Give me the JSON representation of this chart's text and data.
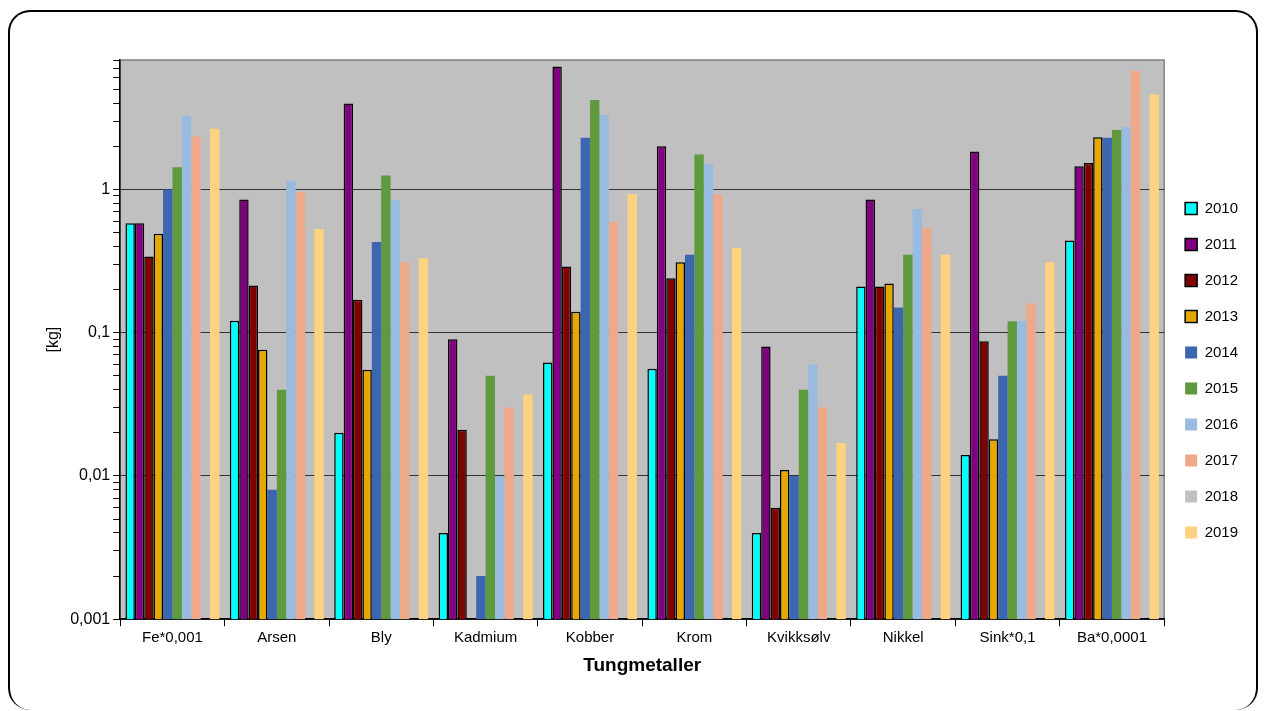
{
  "chart_data": {
    "type": "bar",
    "xlabel": "Tungmetaller",
    "ylabel": "[kg]",
    "log": true,
    "grid": "y",
    "legend": "right",
    "categories": [
      "Fe*0,001",
      "Arsen",
      "Bly",
      "Kadmium",
      "Kobber",
      "Krom",
      "Kvikksølv",
      "Nikkel",
      "Sink*0,1",
      "Ba*0,0001"
    ],
    "ylim": [
      0.001,
      8
    ],
    "yticks": [
      {
        "value": 0.001,
        "label": "0,001"
      },
      {
        "value": 0.002,
        "label": null
      },
      {
        "value": 0.003,
        "label": null
      },
      {
        "value": 0.004,
        "label": null
      },
      {
        "value": 0.005,
        "label": null
      },
      {
        "value": 0.006,
        "label": null
      },
      {
        "value": 0.007,
        "label": null
      },
      {
        "value": 0.008,
        "label": null
      },
      {
        "value": 0.009,
        "label": null
      },
      {
        "value": 0.01,
        "label": "0,01"
      },
      {
        "value": 0.02,
        "label": null
      },
      {
        "value": 0.03,
        "label": null
      },
      {
        "value": 0.04,
        "label": null
      },
      {
        "value": 0.05,
        "label": null
      },
      {
        "value": 0.06,
        "label": null
      },
      {
        "value": 0.07,
        "label": null
      },
      {
        "value": 0.08,
        "label": null
      },
      {
        "value": 0.09,
        "label": null
      },
      {
        "value": 0.1,
        "label": "0,1"
      },
      {
        "value": 0.2,
        "label": null
      },
      {
        "value": 0.3,
        "label": null
      },
      {
        "value": 0.4,
        "label": null
      },
      {
        "value": 0.5,
        "label": null
      },
      {
        "value": 0.6,
        "label": null
      },
      {
        "value": 0.7,
        "label": null
      },
      {
        "value": 0.8,
        "label": null
      },
      {
        "value": 0.9,
        "label": null
      },
      1,
      {
        "value": 2,
        "label": null
      },
      {
        "value": 3,
        "label": null
      },
      {
        "value": 4,
        "label": null
      },
      {
        "value": 5,
        "label": null
      },
      {
        "value": 6,
        "label": null
      },
      {
        "value": 7,
        "label": null
      },
      {
        "value": 8,
        "label": null
      }
    ],
    "series": [
      {
        "name": "2010",
        "color": "#00ffff",
        "values": [
          0.58,
          0.121,
          0.02,
          0.004,
          0.062,
          0.056,
          0.004,
          0.21,
          0.014,
          0.44
        ]
      },
      {
        "name": "2011",
        "color": "#800080",
        "values": [
          0.58,
          0.85,
          3.98,
          0.09,
          7.2,
          2.0,
          0.08,
          0.85,
          1.84,
          1.45
        ]
      },
      {
        "name": "2012",
        "color": "#800000",
        "values": [
          0.34,
          0.213,
          0.17,
          0.021,
          0.29,
          0.24,
          0.006,
          0.21,
          0.087,
          1.53
        ]
      },
      {
        "name": "2013",
        "color": "#e6a800",
        "values": [
          0.49,
          0.076,
          0.055,
          null,
          0.14,
          0.31,
          0.011,
          0.22,
          0.018,
          2.31
        ]
      },
      {
        "name": "2014",
        "color": "#3d66b0",
        "values": [
          1.0,
          0.008,
          0.43,
          0.002,
          2.29,
          0.35,
          0.01,
          0.15,
          0.05,
          2.29
        ]
      },
      {
        "name": "2015",
        "color": "#5f9a3f",
        "values": [
          1.43,
          0.04,
          1.25,
          0.05,
          4.2,
          1.75,
          0.04,
          0.35,
          0.12,
          2.6
        ]
      },
      {
        "name": "2016",
        "color": "#99bbe0",
        "values": [
          3.27,
          1.15,
          0.84,
          0.01,
          3.3,
          1.5,
          0.06,
          0.73,
          0.12,
          2.72
        ]
      },
      {
        "name": "2017",
        "color": "#f0a88a",
        "values": [
          2.34,
          0.96,
          0.31,
          0.03,
          0.59,
          0.92,
          0.03,
          0.54,
          0.16,
          6.7
        ]
      },
      {
        "name": "2018",
        "color": "#c0c0c0",
        "values": [
          null,
          null,
          null,
          null,
          null,
          null,
          null,
          null,
          null,
          null
        ]
      },
      {
        "name": "2019",
        "color": "#ffd280",
        "values": [
          2.65,
          0.53,
          0.33,
          0.037,
          0.93,
          0.39,
          0.017,
          0.35,
          0.31,
          4.6
        ]
      }
    ]
  }
}
